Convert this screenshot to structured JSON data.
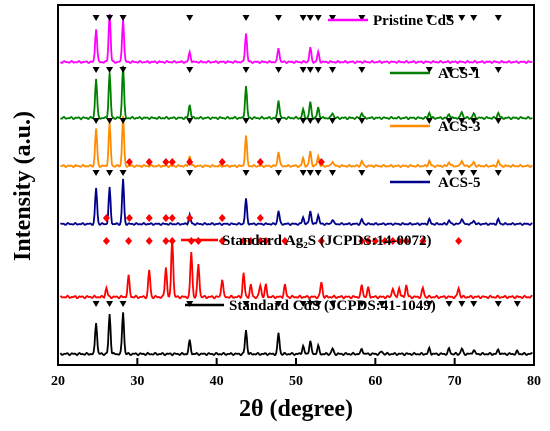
{
  "chart_data": {
    "type": "line",
    "xlabel": "2θ (degree)",
    "ylabel": "Intensity (a.u.)",
    "xlim": [
      20,
      80
    ],
    "xticks": [
      20,
      30,
      40,
      50,
      60,
      70,
      80
    ],
    "y_ticks_shown": false,
    "grid": false,
    "legend": "inline labels beside each pattern",
    "series": [
      {
        "name": "Pristine CdS",
        "color": "#ff00ff",
        "peaks_x": [
          24.8,
          26.5,
          28.2,
          36.6,
          43.7,
          47.8,
          51.8,
          52.8
        ],
        "peaks_h": [
          0.7,
          1.0,
          0.9,
          0.2,
          0.6,
          0.3,
          0.3,
          0.2
        ],
        "markers_x": [
          24.8,
          26.5,
          28.2,
          36.6,
          43.7,
          47.8,
          50.9,
          51.8,
          52.8,
          54.6,
          58.3,
          66.8,
          69.3,
          70.9,
          72.4,
          75.5
        ]
      },
      {
        "name": "ACS-1",
        "color": "#008000",
        "peaks_x": [
          24.8,
          26.5,
          28.2,
          36.6,
          43.7,
          47.8,
          50.9,
          51.8,
          52.8,
          54.6,
          58.3,
          66.8,
          69.3,
          70.9,
          72.4,
          75.5
        ],
        "peaks_h": [
          0.75,
          0.85,
          1.0,
          0.25,
          0.6,
          0.35,
          0.15,
          0.3,
          0.2,
          0.1,
          0.1,
          0.1,
          0.08,
          0.12,
          0.08,
          0.1
        ],
        "markers_x": [
          24.8,
          26.5,
          28.2,
          36.6,
          43.7,
          47.8,
          50.9,
          51.8,
          52.8,
          54.6,
          58.3,
          66.8,
          69.3,
          70.9,
          72.4,
          75.5
        ]
      },
      {
        "name": "ACS-3",
        "color": "#ff8c00",
        "peaks_x": [
          24.8,
          26.5,
          28.2,
          36.6,
          43.7,
          47.8,
          50.9,
          51.8,
          52.8,
          54.6,
          58.3,
          66.8,
          69.3,
          70.9,
          72.4,
          75.5
        ],
        "peaks_h": [
          0.75,
          0.85,
          1.0,
          0.2,
          0.6,
          0.3,
          0.15,
          0.3,
          0.2,
          0.1,
          0.1,
          0.1,
          0.08,
          0.12,
          0.08,
          0.1
        ],
        "markers_x": [
          24.8,
          26.5,
          28.2,
          36.6,
          43.7,
          47.8,
          50.9,
          51.8,
          52.8,
          54.6,
          58.3,
          66.8,
          69.3,
          70.9,
          72.4,
          75.5
        ],
        "diamond_x": [
          29.0,
          31.5,
          33.6,
          34.4,
          36.6,
          40.7,
          45.5,
          53.2
        ]
      },
      {
        "name": "ACS-5",
        "color": "#00008b",
        "peaks_x": [
          24.8,
          26.5,
          28.2,
          36.6,
          43.7,
          47.8,
          50.9,
          51.8,
          52.8,
          54.6,
          58.3,
          66.8,
          69.3,
          70.9,
          72.4,
          75.5
        ],
        "peaks_h": [
          0.8,
          0.8,
          1.0,
          0.2,
          0.55,
          0.3,
          0.15,
          0.3,
          0.2,
          0.1,
          0.1,
          0.1,
          0.08,
          0.12,
          0.08,
          0.1
        ],
        "markers_x": [
          24.8,
          26.5,
          28.2,
          36.6,
          43.7,
          47.8,
          50.9,
          51.8,
          52.8,
          54.6,
          58.3,
          66.8,
          69.3,
          70.9,
          72.4,
          75.5
        ],
        "diamond_x": [
          26.1,
          29.0,
          31.5,
          33.6,
          34.4,
          36.6,
          40.7,
          45.5
        ]
      },
      {
        "name": "Standard Ag₂S (JCPDS:14-0072)",
        "color": "#ff0000",
        "peaks_x": [
          26.1,
          28.9,
          31.5,
          33.6,
          34.4,
          36.8,
          37.7,
          40.7,
          43.4,
          44.3,
          45.5,
          46.2,
          48.6,
          53.2,
          58.3,
          59.1,
          62.2,
          63.0,
          63.9,
          66.0,
          70.5
        ],
        "peaks_h": [
          0.15,
          0.35,
          0.45,
          0.5,
          1.0,
          0.75,
          0.55,
          0.3,
          0.4,
          0.2,
          0.2,
          0.2,
          0.2,
          0.25,
          0.2,
          0.15,
          0.15,
          0.15,
          0.2,
          0.15,
          0.15
        ],
        "diamond_x": [
          26.1,
          28.9,
          31.5,
          33.6,
          34.4,
          36.8,
          37.7,
          40.7,
          43.4,
          44.3,
          45.5,
          46.2,
          48.6,
          53.2,
          58.3,
          59.1,
          60.0,
          61.2,
          62.2,
          63.0,
          63.9,
          66.0,
          70.5
        ]
      },
      {
        "name": "Standard CdS (JCPDS:41-1049)",
        "color": "#000000",
        "peaks_x": [
          24.8,
          26.5,
          28.2,
          36.6,
          43.7,
          47.8,
          50.9,
          51.8,
          52.8,
          54.6,
          58.3,
          60.8,
          66.8,
          69.3,
          70.9,
          72.4,
          75.5,
          77.9
        ],
        "peaks_h": [
          0.6,
          0.75,
          0.8,
          0.25,
          0.45,
          0.4,
          0.15,
          0.25,
          0.15,
          0.1,
          0.1,
          0.05,
          0.1,
          0.1,
          0.1,
          0.08,
          0.08,
          0.05
        ],
        "markers_x": [
          24.8,
          26.5,
          28.2,
          36.6,
          43.7,
          47.8,
          50.9,
          51.8,
          52.8,
          54.6,
          58.3,
          60.8,
          66.8,
          69.3,
          70.9,
          72.4,
          75.5,
          77.9
        ]
      }
    ]
  }
}
